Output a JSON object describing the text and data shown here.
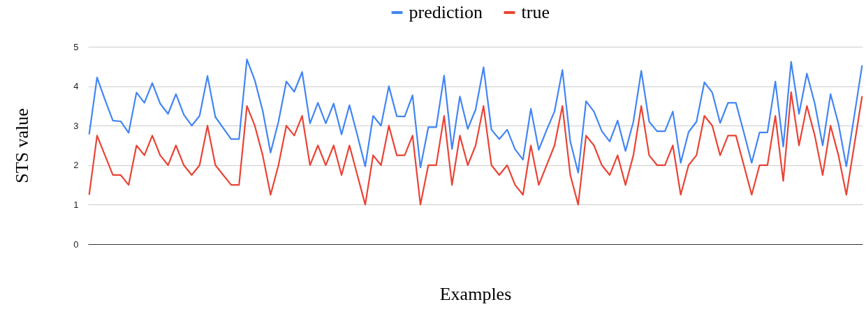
{
  "chart_data": {
    "type": "line",
    "xlabel": "Examples",
    "ylabel": "STS value",
    "categories": [
      null,
      null,
      null,
      null,
      null,
      null,
      null,
      null,
      null,
      null,
      null,
      null,
      null,
      null,
      null,
      null,
      null,
      null,
      null,
      null,
      null,
      null,
      null,
      null,
      null,
      null,
      null,
      null,
      null,
      null,
      null,
      null,
      null,
      null,
      null,
      null,
      null,
      null,
      null,
      null,
      null,
      null,
      null,
      null,
      null,
      null,
      null,
      null,
      null,
      null,
      null,
      null,
      null,
      null,
      null,
      null,
      null,
      null,
      null,
      null,
      null,
      null,
      null,
      null,
      null,
      null,
      null,
      null,
      null,
      null,
      null,
      null,
      null,
      null,
      null,
      null,
      null,
      null,
      null,
      null,
      null,
      null,
      null,
      null,
      null,
      null,
      null,
      null,
      null,
      null,
      null,
      null,
      null,
      null,
      null,
      null,
      null,
      null,
      null
    ],
    "series": [
      {
        "name": "prediction",
        "color": "#4285f4",
        "values": [
          2.78,
          4.22,
          3.66,
          3.13,
          3.11,
          2.82,
          3.84,
          3.58,
          4.08,
          3.56,
          3.3,
          3.8,
          3.28,
          3.0,
          3.25,
          4.26,
          3.22,
          2.94,
          2.66,
          2.66,
          4.68,
          4.15,
          3.38,
          2.32,
          3.1,
          4.12,
          3.86,
          4.36,
          3.06,
          3.58,
          3.06,
          3.56,
          2.78,
          3.52,
          2.76,
          1.97,
          3.25,
          3.0,
          4.0,
          3.24,
          3.23,
          3.77,
          1.94,
          2.96,
          2.96,
          4.27,
          2.41,
          3.74,
          2.92,
          3.41,
          4.48,
          2.9,
          2.66,
          2.9,
          2.4,
          2.14,
          3.43,
          2.39,
          2.89,
          3.36,
          4.41,
          2.6,
          1.81,
          3.62,
          3.36,
          2.86,
          2.6,
          3.13,
          2.36,
          3.1,
          4.39,
          3.1,
          2.86,
          2.86,
          3.36,
          2.06,
          2.84,
          3.1,
          4.1,
          3.84,
          3.07,
          3.58,
          3.58,
          2.83,
          2.06,
          2.83,
          2.83,
          4.12,
          2.47,
          4.62,
          3.3,
          4.32,
          3.56,
          2.5,
          3.8,
          3.05,
          1.97,
          3.24,
          4.53
        ]
      },
      {
        "name": "true",
        "color": "#ea4335",
        "values": [
          1.25,
          2.75,
          2.25,
          1.75,
          1.75,
          1.5,
          2.5,
          2.25,
          2.75,
          2.25,
          2.0,
          2.5,
          2.0,
          1.75,
          2.0,
          3.0,
          2.0,
          1.75,
          1.5,
          1.5,
          3.5,
          3.0,
          2.25,
          1.25,
          2.0,
          3.0,
          2.75,
          3.25,
          2.0,
          2.5,
          2.0,
          2.5,
          1.75,
          2.5,
          1.75,
          1.0,
          2.25,
          2.0,
          3.0,
          2.25,
          2.25,
          2.75,
          1.0,
          2.0,
          2.0,
          3.25,
          1.5,
          2.75,
          2.0,
          2.5,
          3.5,
          2.0,
          1.75,
          2.0,
          1.5,
          1.25,
          2.5,
          1.5,
          2.0,
          2.5,
          3.5,
          1.75,
          1.0,
          2.75,
          2.5,
          2.0,
          1.75,
          2.25,
          1.5,
          2.25,
          3.5,
          2.25,
          2.0,
          2.0,
          2.5,
          1.25,
          2.0,
          2.25,
          3.25,
          3.0,
          2.25,
          2.75,
          2.75,
          2.0,
          1.25,
          2.0,
          2.0,
          3.25,
          1.6,
          3.85,
          2.5,
          3.5,
          2.75,
          1.75,
          3.0,
          2.25,
          1.25,
          2.5,
          3.75
        ]
      }
    ],
    "ylim": [
      0,
      5
    ],
    "yticks": [
      0,
      1,
      2,
      3,
      4,
      5
    ],
    "grid": "y",
    "legend": "top",
    "tick_labels": "y"
  }
}
